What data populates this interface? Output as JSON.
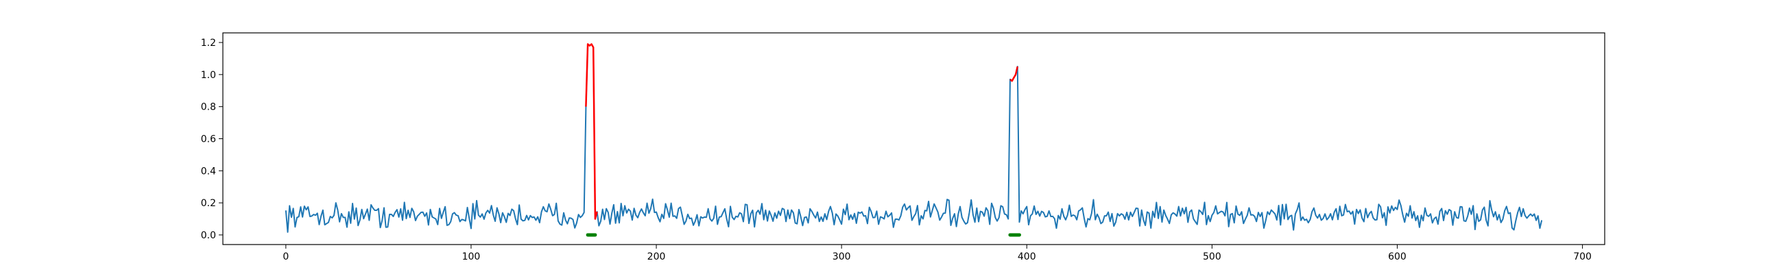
{
  "chart_data": {
    "type": "line",
    "title": "",
    "xlabel": "",
    "ylabel": "",
    "xlim": [
      -34,
      712
    ],
    "ylim": [
      -0.06,
      1.26
    ],
    "grid": false,
    "legend": "none",
    "x_ticks": [
      0,
      100,
      200,
      300,
      400,
      500,
      600,
      700
    ],
    "y_ticks": [
      0.0,
      0.2,
      0.4,
      0.6,
      0.8,
      1.0,
      1.2
    ],
    "series": [
      {
        "color": "#1f77b4",
        "baseline": {
          "n": 679,
          "mean": 0.12,
          "range": [
            0.0,
            0.24
          ]
        },
        "peaks": [
          {
            "x": [
              160,
              161,
              162,
              163,
              164,
              165,
              166,
              167
            ],
            "y": [
              0.12,
              0.14,
              0.8,
              1.19,
              1.18,
              1.19,
              1.17,
              0.1
            ]
          },
          {
            "x": [
              390,
              391,
              392,
              393,
              394,
              395,
              396
            ],
            "y": [
              0.1,
              0.97,
              0.96,
              0.98,
              1.0,
              1.05,
              0.08
            ]
          }
        ]
      }
    ],
    "highlighted_segments": {
      "color": "#ff0000",
      "ranges": [
        [
          162,
          168
        ],
        [
          391,
          395
        ]
      ]
    },
    "markers": {
      "color": "#008000",
      "y": 0.0,
      "ranges": [
        [
          163,
          167
        ],
        [
          391,
          396
        ]
      ]
    }
  }
}
